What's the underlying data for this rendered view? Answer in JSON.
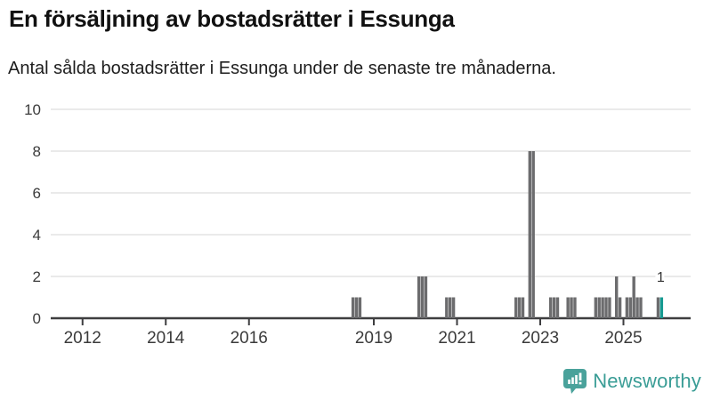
{
  "header": {
    "title": "En försäljning av bostadsrätter i Essunga",
    "subtitle": "Antal sålda bostadsrätter i Essunga under de senaste tre månaderna."
  },
  "chart_data": {
    "type": "bar",
    "title": "En försäljning av bostadsrätter i Essunga",
    "subtitle": "Antal sålda bostadsrätter i Essunga under de senaste tre månaderna.",
    "ylabel": "",
    "xlabel": "",
    "ylim": [
      0,
      10
    ],
    "y_ticks": [
      0,
      2,
      4,
      6,
      8,
      10
    ],
    "x_tick_years": [
      "2012",
      "2014",
      "2016",
      "2019",
      "2021",
      "2023",
      "2025"
    ],
    "grid": true,
    "bar_color": "#6c6c6e",
    "highlight_color": "#169a91",
    "gridline_color": "#eaeaea",
    "axis_color": "#3e3e40",
    "tick_label_color": "#3b3b3b",
    "bars": [
      {
        "month": "2018-07",
        "value": 1
      },
      {
        "month": "2018-08",
        "value": 1
      },
      {
        "month": "2018-09",
        "value": 1
      },
      {
        "month": "2020-02",
        "value": 2
      },
      {
        "month": "2020-03",
        "value": 2
      },
      {
        "month": "2020-04",
        "value": 2
      },
      {
        "month": "2020-10",
        "value": 1
      },
      {
        "month": "2020-11",
        "value": 1
      },
      {
        "month": "2020-12",
        "value": 1
      },
      {
        "month": "2022-06",
        "value": 1
      },
      {
        "month": "2022-07",
        "value": 1
      },
      {
        "month": "2022-08",
        "value": 1
      },
      {
        "month": "2022-10",
        "value": 8
      },
      {
        "month": "2022-11",
        "value": 8
      },
      {
        "month": "2023-04",
        "value": 1
      },
      {
        "month": "2023-05",
        "value": 1
      },
      {
        "month": "2023-06",
        "value": 1
      },
      {
        "month": "2023-09",
        "value": 1
      },
      {
        "month": "2023-10",
        "value": 1
      },
      {
        "month": "2023-11",
        "value": 1
      },
      {
        "month": "2024-05",
        "value": 1
      },
      {
        "month": "2024-06",
        "value": 1
      },
      {
        "month": "2024-07",
        "value": 1
      },
      {
        "month": "2024-08",
        "value": 1
      },
      {
        "month": "2024-09",
        "value": 1
      },
      {
        "month": "2024-11",
        "value": 2
      },
      {
        "month": "2024-12",
        "value": 1
      },
      {
        "month": "2025-02",
        "value": 1
      },
      {
        "month": "2025-03",
        "value": 1
      },
      {
        "month": "2025-04",
        "value": 2
      },
      {
        "month": "2025-05",
        "value": 1
      },
      {
        "month": "2025-06",
        "value": 1
      },
      {
        "month": "2025-11",
        "value": 1
      },
      {
        "month": "2025-12",
        "value": 1,
        "highlight": true
      }
    ],
    "annotation": {
      "text": "1",
      "month": "2025-12",
      "value": 1
    }
  },
  "footer": {
    "brand": "Newsworthy",
    "brand_color": "#3a9d96",
    "logo_icon": "newsworthy-bubble-barchart-icon"
  }
}
